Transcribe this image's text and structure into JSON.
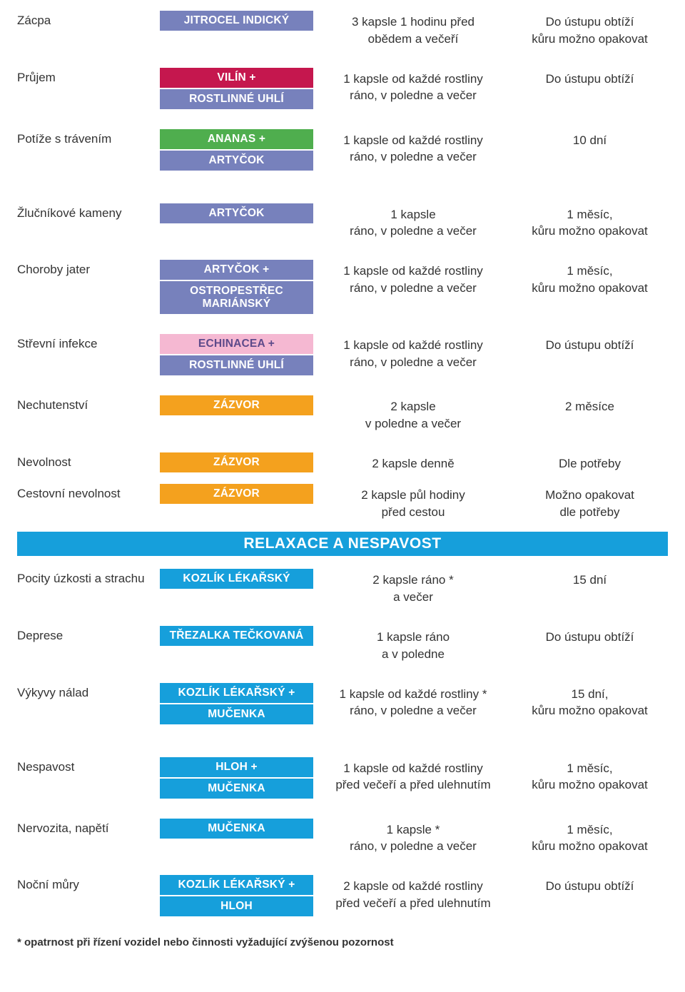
{
  "colors": {
    "purple": "#7781bc",
    "red": "#c5174e",
    "green": "#4fae4e",
    "pink": "#f5b8d2",
    "pink_text": "#5d4a8a",
    "orange": "#f4a11e",
    "blue": "#169fdb",
    "section_blue": "#169fdb"
  },
  "section2_title": "RELAXACE A NESPAVOST",
  "footnote": "* opatrnost při řízení vozidel nebo činnosti vyžadující zvýšenou pozornost",
  "rows1": [
    {
      "condition": "Zácpa",
      "herbs": [
        {
          "label": "JITROCEL INDICKÝ",
          "bg": "#7781bc",
          "fg": "#ffffff"
        }
      ],
      "dosage": "3 kapsle 1 hodinu před\nobědem a večeří",
      "duration": "Do ústupu obtíží\nkůru možno opakovat",
      "gap": "normal"
    },
    {
      "condition": "Průjem",
      "herbs": [
        {
          "label": "VILÍN +",
          "bg": "#c5174e",
          "fg": "#ffffff"
        },
        {
          "label": "ROSTLINNÉ UHLÍ",
          "bg": "#7781bc",
          "fg": "#ffffff"
        }
      ],
      "dosage": "1 kapsle od každé rostliny\nráno, v poledne a večer",
      "duration": "Do ústupu obtíží",
      "gap": "normal"
    },
    {
      "condition": "Potíže s trávením",
      "herbs": [
        {
          "label": "ANANAS +",
          "bg": "#4fae4e",
          "fg": "#ffffff"
        },
        {
          "label": "ARTYČOK",
          "bg": "#7781bc",
          "fg": "#ffffff"
        }
      ],
      "dosage": "1 kapsle od každé rostliny\nráno, v poledne a večer",
      "duration": "10 dní",
      "gap": "big"
    },
    {
      "condition": "Žlučníkové kameny",
      "herbs": [
        {
          "label": "ARTYČOK",
          "bg": "#7781bc",
          "fg": "#ffffff"
        }
      ],
      "dosage": "1 kapsle\nráno, v poledne a večer",
      "duration": "1 měsíc,\nkůru možno opakovat",
      "gap": "normal"
    },
    {
      "condition": "Choroby jater",
      "herbs": [
        {
          "label": "ARTYČOK +",
          "bg": "#7781bc",
          "fg": "#ffffff"
        },
        {
          "label": "OSTROPESTŘEC MARIÁNSKÝ",
          "bg": "#7781bc",
          "fg": "#ffffff"
        }
      ],
      "dosage": "1 kapsle od každé rostliny\nráno, v poledne a večer",
      "duration": "1 měsíc,\nkůru možno opakovat",
      "gap": "normal"
    },
    {
      "condition": "Střevní infekce",
      "herbs": [
        {
          "label": "ECHINACEA +",
          "bg": "#f5b8d2",
          "fg": "#5d4a8a"
        },
        {
          "label": "ROSTLINNÉ UHLÍ",
          "bg": "#7781bc",
          "fg": "#ffffff"
        }
      ],
      "dosage": "1 kapsle od každé rostliny\nráno, v poledne a večer",
      "duration": "Do ústupu obtíží",
      "gap": "normal"
    },
    {
      "condition": "Nechutenství",
      "herbs": [
        {
          "label": "ZÁZVOR",
          "bg": "#f4a11e",
          "fg": "#ffffff"
        }
      ],
      "dosage": "2 kapsle\nv poledne a večer",
      "duration": "2 měsíce",
      "gap": "normal"
    },
    {
      "condition": "Nevolnost",
      "herbs": [
        {
          "label": "ZÁZVOR",
          "bg": "#f4a11e",
          "fg": "#ffffff"
        }
      ],
      "dosage": "2 kapsle denně",
      "duration": "Dle potřeby",
      "gap": "small"
    },
    {
      "condition": "Cestovní nevolnost",
      "herbs": [
        {
          "label": "ZÁZVOR",
          "bg": "#f4a11e",
          "fg": "#ffffff"
        }
      ],
      "dosage": "2 kapsle půl hodiny\npřed cestou",
      "duration": "Možno opakovat\ndle potřeby",
      "gap": "small"
    }
  ],
  "rows2": [
    {
      "condition": "Pocity úzkosti a strachu",
      "herbs": [
        {
          "label": "KOZLÍK LÉKAŘSKÝ",
          "bg": "#169fdb",
          "fg": "#ffffff"
        }
      ],
      "dosage": "2 kapsle ráno *\na večer",
      "duration": "15 dní",
      "gap": "normal"
    },
    {
      "condition": "Deprese",
      "herbs": [
        {
          "label": "TŘEZALKA TEČKOVANÁ",
          "bg": "#169fdb",
          "fg": "#ffffff"
        }
      ],
      "dosage": "1 kapsle ráno\na v poledne",
      "duration": "Do ústupu obtíží",
      "gap": "normal"
    },
    {
      "condition": "Výkyvy nálad",
      "herbs": [
        {
          "label": "KOZLÍK LÉKAŘSKÝ +",
          "bg": "#169fdb",
          "fg": "#ffffff"
        },
        {
          "label": "MUČENKA",
          "bg": "#169fdb",
          "fg": "#ffffff"
        }
      ],
      "dosage": "1 kapsle od každé rostliny *\nráno, v poledne a večer",
      "duration": "15 dní,\nkůru možno opakovat",
      "gap": "big"
    },
    {
      "condition": "Nespavost",
      "herbs": [
        {
          "label": "HLOH +",
          "bg": "#169fdb",
          "fg": "#ffffff"
        },
        {
          "label": "MUČENKA",
          "bg": "#169fdb",
          "fg": "#ffffff"
        }
      ],
      "dosage": "1 kapsle od každé rostliny\npřed večeří a před ulehnutím",
      "duration": "1 měsíc,\nkůru možno opakovat",
      "gap": "normal"
    },
    {
      "condition": "Nervozita, napětí",
      "herbs": [
        {
          "label": "MUČENKA",
          "bg": "#169fdb",
          "fg": "#ffffff"
        }
      ],
      "dosage": "1 kapsle *\nráno, v poledne a večer",
      "duration": "1 měsíc,\nkůru možno opakovat",
      "gap": "normal"
    },
    {
      "condition": "Noční můry",
      "herbs": [
        {
          "label": "KOZLÍK LÉKAŘSKÝ +",
          "bg": "#169fdb",
          "fg": "#ffffff"
        },
        {
          "label": "HLOH",
          "bg": "#169fdb",
          "fg": "#ffffff"
        }
      ],
      "dosage": "2 kapsle od každé rostliny\npřed večeří a před ulehnutím",
      "duration": "Do ústupu obtíží",
      "gap": "normal"
    }
  ]
}
